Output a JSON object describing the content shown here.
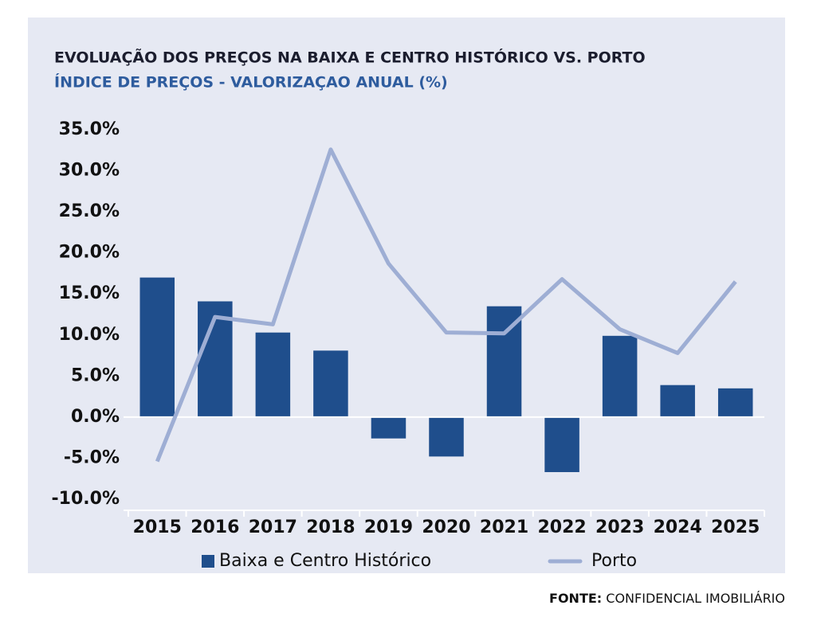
{
  "chart_data": {
    "type": "bar",
    "title": "EVOLUAÇÃO DOS PREÇOS NA BAIXA E CENTRO HISTÓRICO VS. PORTO",
    "subtitle": "ÍNDICE DE PREÇOS - VALORIZAÇAO ANUAL (%)",
    "categories": [
      "2015",
      "2016",
      "2017",
      "2018",
      "2019",
      "2020",
      "2021",
      "2022",
      "2023",
      "2024",
      "2025"
    ],
    "series": [
      {
        "name": "Baixa e Centro Histórico",
        "type": "bar",
        "color": "#1f4e8c",
        "values": [
          17.0,
          14.1,
          10.3,
          8.1,
          -2.6,
          -4.8,
          13.5,
          -6.7,
          9.9,
          3.9,
          3.5
        ]
      },
      {
        "name": "Porto",
        "type": "line",
        "color": "#9eaed4",
        "values": [
          -5.4,
          12.2,
          11.3,
          32.6,
          18.7,
          10.3,
          10.2,
          16.8,
          10.7,
          7.8,
          16.5
        ]
      }
    ],
    "ylim": [
      -10,
      35
    ],
    "yticks": [
      {
        "value": 35,
        "label": "35.0%"
      },
      {
        "value": 30,
        "label": "30.0%"
      },
      {
        "value": 25,
        "label": "25.0%"
      },
      {
        "value": 20,
        "label": "20.0%"
      },
      {
        "value": 15,
        "label": "15.0%"
      },
      {
        "value": 10,
        "label": "10.0%"
      },
      {
        "value": 5,
        "label": "5.0%"
      },
      {
        "value": 0,
        "label": "0.0%"
      },
      {
        "value": -5,
        "label": "-5.0%"
      },
      {
        "value": -10,
        "label": "-10.0%"
      }
    ],
    "grid": false,
    "legend": "bottom",
    "source_label": "FONTE:",
    "source": "CONFIDENCIAL IMOBILIÁRIO"
  }
}
